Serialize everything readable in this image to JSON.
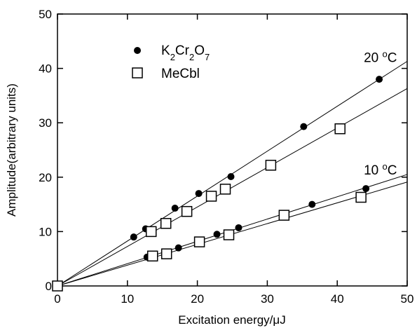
{
  "chart_data": {
    "type": "scatter",
    "xlabel": "Excitation energy/μJ",
    "ylabel": "Amplitude(arbitrary units)",
    "xlim": [
      0,
      50
    ],
    "ylim": [
      0,
      50
    ],
    "xticks": [
      0,
      10,
      20,
      30,
      40,
      50
    ],
    "yticks": [
      0,
      10,
      20,
      30,
      40,
      50
    ],
    "grid": false,
    "legend_position": "top-left",
    "series": [
      {
        "name": "K2Cr2O7",
        "legend_main": "K",
        "legend_parts": [
          {
            "t": "K",
            "sub": false
          },
          {
            "t": "2",
            "sub": true
          },
          {
            "t": "Cr",
            "sub": false
          },
          {
            "t": "2",
            "sub": true
          },
          {
            "t": "O",
            "sub": false
          },
          {
            "t": "7",
            "sub": true
          }
        ],
        "marker": "filled-circle",
        "groups": [
          {
            "condition": "20 °C",
            "x": [
              10.9,
              12.6,
              16.8,
              20.2,
              24.8,
              35.2,
              46.0
            ],
            "y": [
              9.0,
              10.5,
              14.3,
              17.0,
              20.1,
              29.3,
              38.0
            ],
            "fit_slope": 0.826
          },
          {
            "condition": "10 °C",
            "x": [
              12.8,
              17.3,
              22.8,
              25.9,
              36.4,
              44.1
            ],
            "y": [
              5.3,
              7.0,
              9.5,
              10.7,
              15.0,
              17.9
            ],
            "fit_slope": 0.41
          }
        ]
      },
      {
        "name": "MeCbl",
        "marker": "open-square",
        "groups": [
          {
            "condition": "20 °C",
            "x": [
              0.0,
              13.4,
              15.5,
              18.5,
              22.0,
              24.0,
              30.5,
              40.4
            ],
            "y": [
              0.0,
              10.0,
              11.5,
              13.7,
              16.5,
              17.8,
              22.2,
              28.9
            ],
            "fit_slope": 0.726
          },
          {
            "condition": "10 °C",
            "x": [
              13.6,
              15.6,
              20.3,
              24.5,
              32.4,
              43.4
            ],
            "y": [
              5.5,
              5.9,
              8.1,
              9.4,
              13.0,
              16.3
            ],
            "fit_slope": 0.382
          }
        ]
      }
    ],
    "annotations": [
      {
        "text": "20 °C",
        "main": "20 ",
        "sup": "o",
        "tail": "C",
        "anchor_x": 43.8,
        "anchor_y": 41.2
      },
      {
        "text": "10 °C",
        "main": "10 ",
        "sup": "o",
        "tail": "C",
        "anchor_x": 43.8,
        "anchor_y": 20.5
      }
    ]
  }
}
